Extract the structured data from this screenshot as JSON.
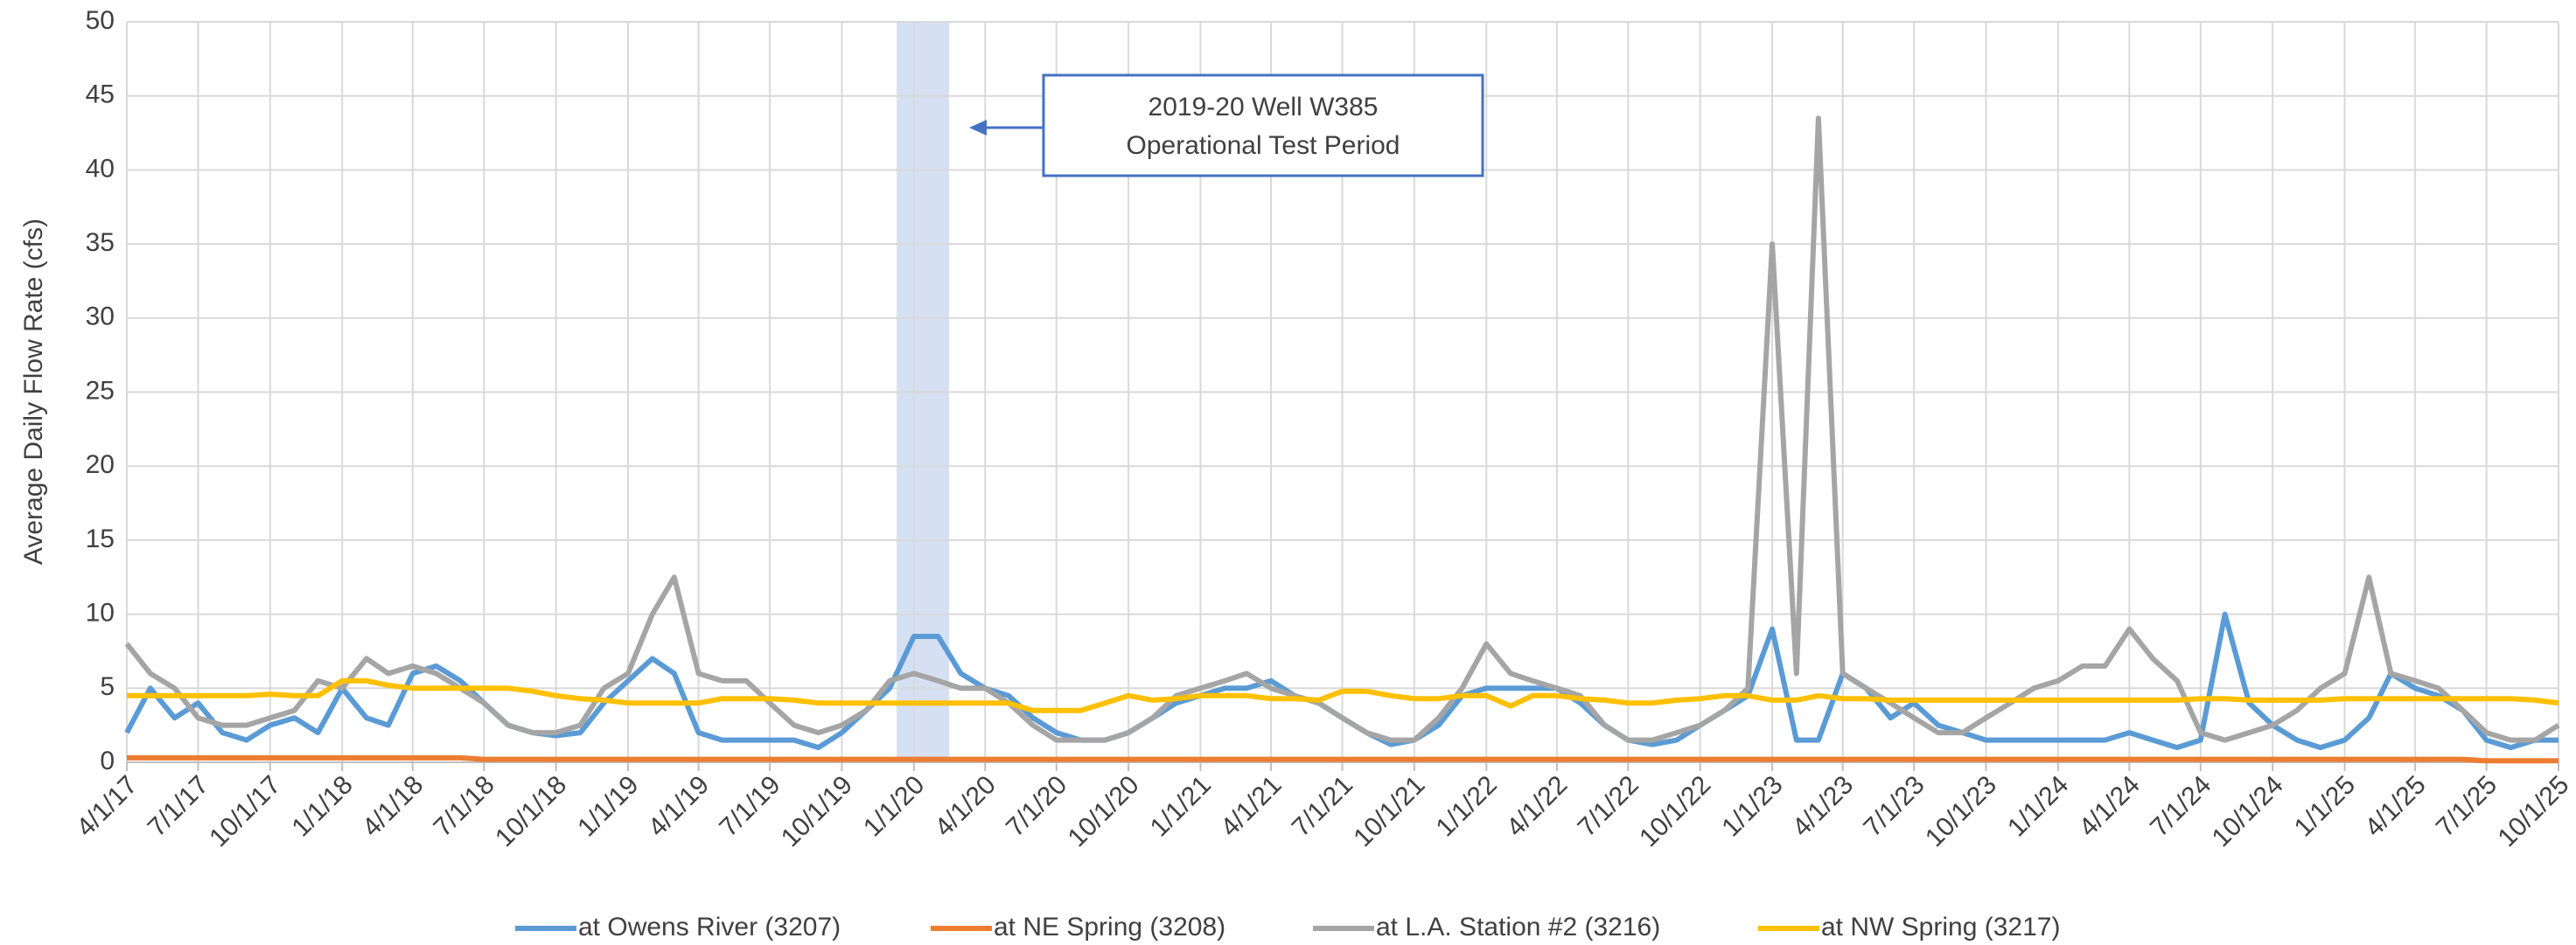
{
  "chart_data": {
    "type": "line",
    "y_label": "Average Daily Flow Rate (cfs)",
    "ylim": [
      0,
      50
    ],
    "yticks": [
      0,
      5,
      10,
      15,
      20,
      25,
      30,
      35,
      40,
      45,
      50
    ],
    "xlim": [
      "4/1/17",
      "10/1/25"
    ],
    "xticks": [
      "4/1/17",
      "7/1/17",
      "10/1/17",
      "1/1/18",
      "4/1/18",
      "7/1/18",
      "10/1/18",
      "1/1/19",
      "4/1/19",
      "7/1/19",
      "10/1/19",
      "1/1/20",
      "4/1/20",
      "7/1/20",
      "10/1/20",
      "1/1/21",
      "4/1/21",
      "7/1/21",
      "10/1/21",
      "1/1/22",
      "4/1/22",
      "7/1/22",
      "10/1/22",
      "1/1/23",
      "4/1/23",
      "7/1/23",
      "10/1/23",
      "1/1/24",
      "4/1/24",
      "7/1/24",
      "10/1/24",
      "1/1/25",
      "4/1/25",
      "7/1/25",
      "10/1/25"
    ],
    "grid": true,
    "legend": "bottom",
    "annotation": {
      "lines": [
        "2019-20 Well W385",
        "Operational Test Period"
      ],
      "color": "#4472c4",
      "shade_color": "#d6e0f3",
      "x": [
        "12/10/19",
        "2/15/20"
      ]
    },
    "x": [
      "4/1/17",
      "5/1/17",
      "6/1/17",
      "7/1/17",
      "8/1/17",
      "9/1/17",
      "10/1/17",
      "11/1/17",
      "12/1/17",
      "1/1/18",
      "2/1/18",
      "3/1/18",
      "4/1/18",
      "5/1/18",
      "6/1/18",
      "7/1/18",
      "8/1/18",
      "9/1/18",
      "10/1/18",
      "11/1/18",
      "12/1/18",
      "1/1/19",
      "2/1/19",
      "3/1/19",
      "4/1/19",
      "5/1/19",
      "6/1/19",
      "7/1/19",
      "8/1/19",
      "9/1/19",
      "10/1/19",
      "11/1/19",
      "12/1/19",
      "1/1/20",
      "2/1/20",
      "3/1/20",
      "4/1/20",
      "5/1/20",
      "6/1/20",
      "7/1/20",
      "8/1/20",
      "9/1/20",
      "10/1/20",
      "11/1/20",
      "12/1/20",
      "1/1/21",
      "2/1/21",
      "3/1/21",
      "4/1/21",
      "5/1/21",
      "6/1/21",
      "7/1/21",
      "8/1/21",
      "9/1/21",
      "10/1/21",
      "11/1/21",
      "12/1/21",
      "1/1/22",
      "2/1/22",
      "3/1/22",
      "4/1/22",
      "5/1/22",
      "6/1/22",
      "7/1/22",
      "8/1/22",
      "9/1/22",
      "10/1/22",
      "11/1/22",
      "12/1/22",
      "1/1/23",
      "2/1/23",
      "3/1/23",
      "4/1/23",
      "5/1/23",
      "6/1/23",
      "7/1/23",
      "8/1/23",
      "9/1/23",
      "10/1/23",
      "11/1/23",
      "12/1/23",
      "1/1/24",
      "2/1/24",
      "3/1/24",
      "4/1/24",
      "5/1/24",
      "6/1/24",
      "7/1/24",
      "8/1/24",
      "9/1/24",
      "10/1/24",
      "11/1/24",
      "12/1/24",
      "1/1/25",
      "2/1/25",
      "3/1/25",
      "4/1/25",
      "5/1/25",
      "6/1/25",
      "7/1/25",
      "8/1/25",
      "9/1/25",
      "10/1/25"
    ],
    "series": [
      {
        "name": "at Owens River (3207)",
        "color": "#5b9bd5",
        "values": [
          2,
          5,
          3,
          4,
          2,
          1.5,
          2.5,
          3,
          2,
          5,
          3,
          2.5,
          6,
          6.5,
          5.5,
          4,
          2.5,
          2,
          1.8,
          2,
          4,
          5.5,
          7,
          6,
          2,
          1.5,
          1.5,
          1.5,
          1.5,
          1,
          2,
          3.5,
          5,
          8.5,
          8.5,
          6,
          5,
          4.5,
          3,
          2,
          1.5,
          1.5,
          2,
          3,
          4,
          4.5,
          5,
          5,
          5.5,
          4.5,
          4,
          3,
          2,
          1.2,
          1.5,
          2.5,
          4.5,
          5,
          5,
          5,
          5,
          4,
          2.5,
          1.5,
          1.2,
          1.5,
          2.5,
          3.5,
          4.5,
          9,
          1.5,
          1.5,
          6,
          5,
          3,
          4,
          2.5,
          2,
          1.5,
          1.5,
          1.5,
          1.5,
          1.5,
          1.5,
          2,
          1.5,
          1,
          1.5,
          10,
          4,
          2.5,
          1.5,
          1,
          1.5,
          3,
          6,
          5,
          4.5,
          3.5,
          1.5,
          1,
          1.5,
          1.5
        ]
      },
      {
        "name": "at NE Spring (3208)",
        "color": "#ed7d31",
        "values": [
          0.3,
          0.3,
          0.3,
          0.3,
          0.3,
          0.3,
          0.3,
          0.3,
          0.3,
          0.3,
          0.3,
          0.3,
          0.3,
          0.3,
          0.3,
          0.2,
          0.2,
          0.2,
          0.2,
          0.2,
          0.2,
          0.2,
          0.2,
          0.2,
          0.2,
          0.2,
          0.2,
          0.2,
          0.2,
          0.2,
          0.2,
          0.2,
          0.2,
          0.2,
          0.2,
          0.2,
          0.2,
          0.2,
          0.2,
          0.2,
          0.2,
          0.2,
          0.2,
          0.2,
          0.2,
          0.2,
          0.2,
          0.2,
          0.2,
          0.2,
          0.2,
          0.2,
          0.2,
          0.2,
          0.2,
          0.2,
          0.2,
          0.2,
          0.2,
          0.2,
          0.2,
          0.2,
          0.2,
          0.2,
          0.2,
          0.2,
          0.2,
          0.2,
          0.2,
          0.2,
          0.2,
          0.2,
          0.2,
          0.2,
          0.2,
          0.2,
          0.2,
          0.2,
          0.2,
          0.2,
          0.2,
          0.2,
          0.2,
          0.2,
          0.2,
          0.2,
          0.2,
          0.2,
          0.2,
          0.2,
          0.2,
          0.2,
          0.2,
          0.2,
          0.2,
          0.2,
          0.2,
          0.2,
          0.2,
          0.1,
          0.1,
          0.1,
          0.1
        ]
      },
      {
        "name": "at L.A. Station #2 (3216)",
        "color": "#a5a5a5",
        "values": [
          8,
          6,
          5,
          3,
          2.5,
          2.5,
          3,
          3.5,
          5.5,
          5,
          7,
          6,
          6.5,
          6,
          5,
          4,
          2.5,
          2,
          2,
          2.5,
          5,
          6,
          10,
          12.5,
          6,
          5.5,
          5.5,
          4,
          2.5,
          2,
          2.5,
          3.5,
          5.5,
          6,
          5.5,
          5,
          5,
          4,
          2.5,
          1.5,
          1.5,
          1.5,
          2,
          3,
          4.5,
          5,
          5.5,
          6,
          5,
          4.5,
          4,
          3,
          2,
          1.5,
          1.5,
          3,
          5,
          8,
          6,
          5.5,
          5,
          4.5,
          2.5,
          1.5,
          1.5,
          2,
          2.5,
          3.5,
          5,
          35,
          6,
          43.5,
          6,
          5,
          4,
          3,
          2,
          2,
          3,
          4,
          5,
          5.5,
          6.5,
          6.5,
          9,
          7,
          5.5,
          2,
          1.5,
          2,
          2.5,
          3.5,
          5,
          6,
          12.5,
          6,
          5.5,
          5,
          3.5,
          2,
          1.5,
          1.5,
          2.5
        ]
      },
      {
        "name": "at NW Spring (3217)",
        "color": "#ffc000",
        "values": [
          4.5,
          4.5,
          4.5,
          4.5,
          4.5,
          4.5,
          4.6,
          4.5,
          4.5,
          5.5,
          5.5,
          5.2,
          5,
          5,
          5,
          5,
          5,
          4.8,
          4.5,
          4.3,
          4.2,
          4,
          4,
          4,
          4,
          4.3,
          4.3,
          4.3,
          4.2,
          4,
          4,
          4,
          4,
          4,
          4,
          4,
          4,
          4,
          3.5,
          3.5,
          3.5,
          4,
          4.5,
          4.2,
          4.3,
          4.5,
          4.5,
          4.5,
          4.3,
          4.3,
          4.2,
          4.8,
          4.8,
          4.5,
          4.3,
          4.3,
          4.5,
          4.5,
          3.8,
          4.5,
          4.5,
          4.3,
          4.2,
          4,
          4,
          4.2,
          4.3,
          4.5,
          4.5,
          4.2,
          4.2,
          4.5,
          4.3,
          4.3,
          4.2,
          4.2,
          4.2,
          4.2,
          4.2,
          4.2,
          4.2,
          4.2,
          4.2,
          4.2,
          4.2,
          4.2,
          4.2,
          4.3,
          4.3,
          4.2,
          4.2,
          4.2,
          4.2,
          4.3,
          4.3,
          4.3,
          4.3,
          4.3,
          4.3,
          4.3,
          4.3,
          4.2,
          4
        ]
      }
    ]
  }
}
